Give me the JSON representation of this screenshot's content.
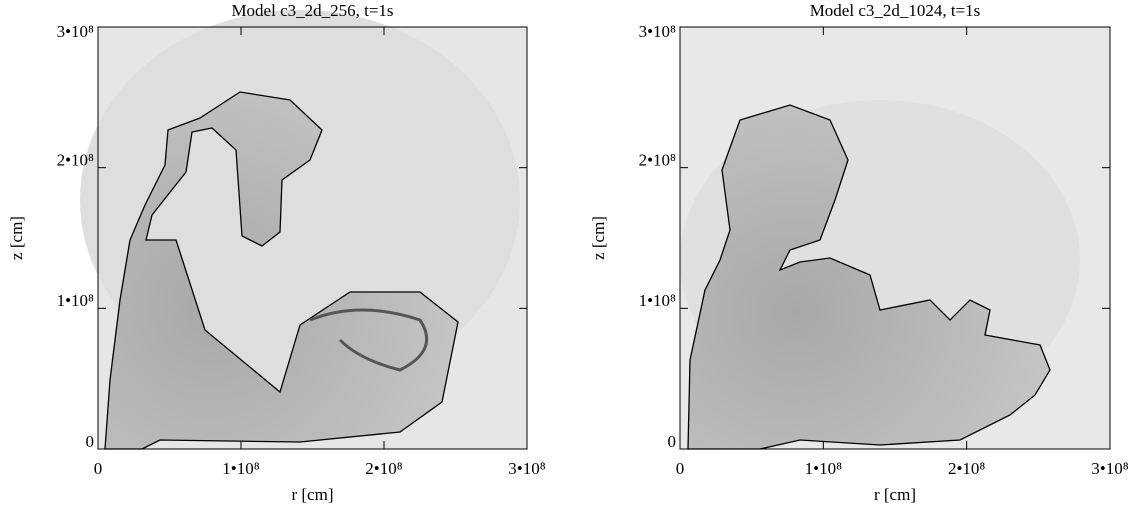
{
  "chart_data": [
    {
      "type": "image",
      "title": "Model c3_2d_256, t=1s",
      "xlabel": "r [cm]",
      "ylabel": "z [cm]",
      "xlim": [
        0,
        300000000
      ],
      "ylim": [
        0,
        300000000
      ],
      "xticks": [
        0,
        {
          "value": 100000000,
          "label": "1•10⁸"
        },
        {
          "value": 200000000,
          "label": "2•10⁸"
        },
        {
          "value": 300000000,
          "label": "3•10⁸"
        }
      ],
      "yticks": [
        0,
        {
          "value": 100000000,
          "label": "1•10⁸"
        },
        {
          "value": 200000000,
          "label": "2•10⁸"
        },
        {
          "value": 300000000,
          "label": "3•10⁸"
        }
      ]
    },
    {
      "type": "image",
      "title": "Model c3_2d_1024, t=1s",
      "xlabel": "r [cm]",
      "ylabel": "z [cm]",
      "xlim": [
        0,
        300000000
      ],
      "ylim": [
        0,
        300000000
      ],
      "xticks": [
        0,
        {
          "value": 100000000,
          "label": "1•10⁸"
        },
        {
          "value": 200000000,
          "label": "2•10⁸"
        },
        {
          "value": 300000000,
          "label": "3•10⁸"
        }
      ],
      "yticks": [
        0,
        {
          "value": 100000000,
          "label": "1•10⁸"
        },
        {
          "value": 200000000,
          "label": "2•10⁸"
        },
        {
          "value": 300000000,
          "label": "3•10⁸"
        }
      ]
    }
  ]
}
